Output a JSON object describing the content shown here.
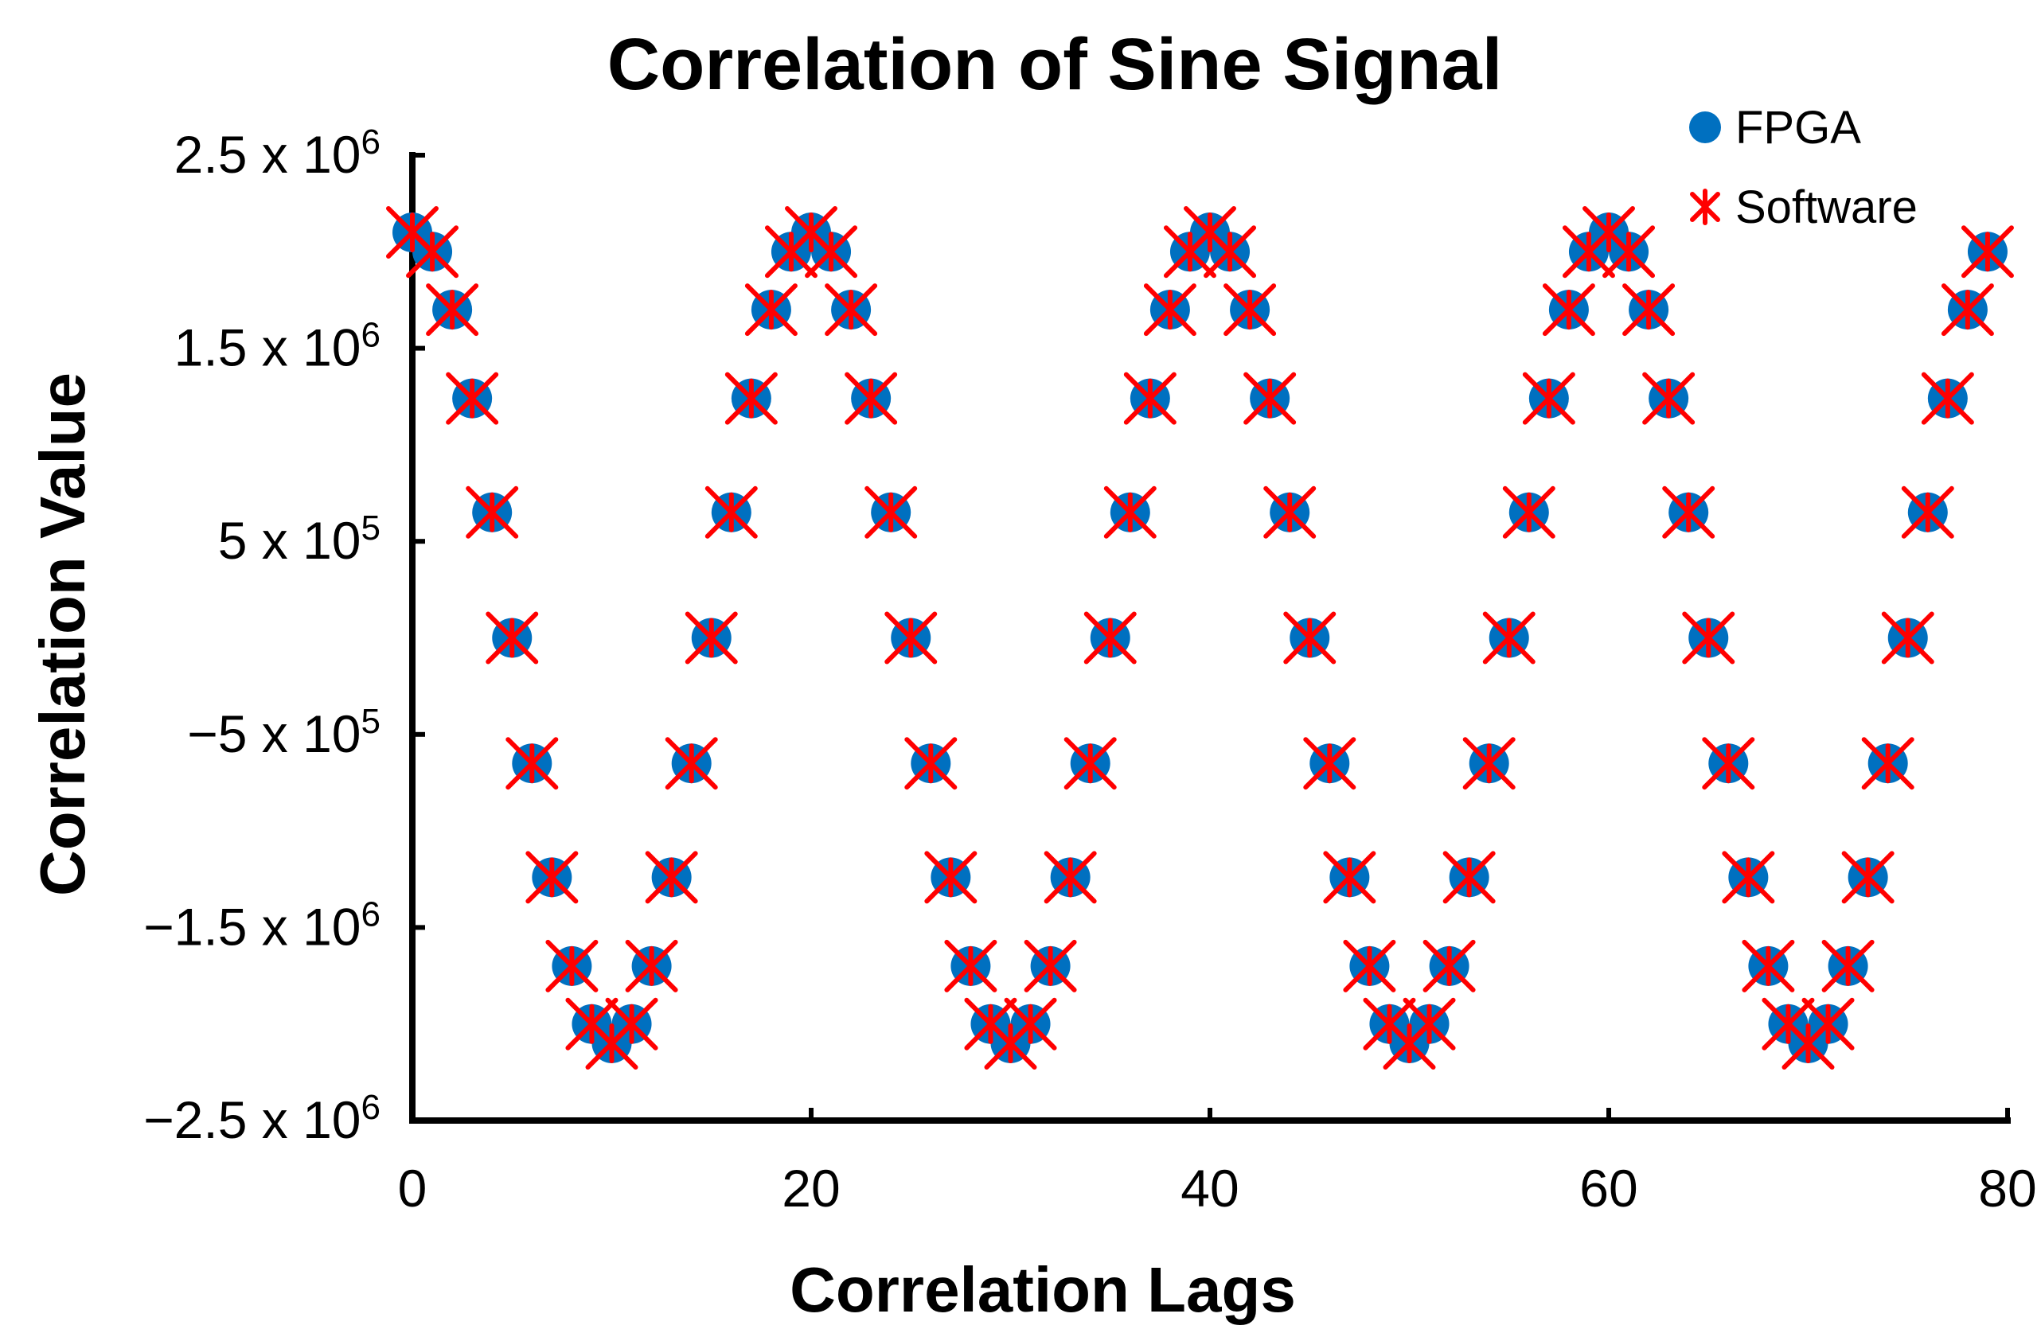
{
  "chart_data": {
    "type": "scatter",
    "title": "Correlation of Sine Signal",
    "xlabel": "Correlation Lags",
    "ylabel": "Correlation Value",
    "xlim": [
      0,
      80
    ],
    "ylim": [
      -2500000,
      2500000
    ],
    "grid": false,
    "legend_position": "top-right",
    "x_ticks": [
      {
        "value": 0,
        "label": "0"
      },
      {
        "value": 20,
        "label": "20"
      },
      {
        "value": 40,
        "label": "40"
      },
      {
        "value": 60,
        "label": "60"
      },
      {
        "value": 80,
        "label": "80"
      }
    ],
    "y_ticks": [
      {
        "value": 2500000,
        "mantissa": "2.5 x 10",
        "exponent": "6"
      },
      {
        "value": 1500000,
        "mantissa": "1.5 x 10",
        "exponent": "6"
      },
      {
        "value": 500000,
        "mantissa": "5 x 10",
        "exponent": "5"
      },
      {
        "value": -500000,
        "mantissa": "−5 x 10",
        "exponent": "5"
      },
      {
        "value": -1500000,
        "mantissa": "−1.5 x 10",
        "exponent": "6"
      },
      {
        "value": -2500000,
        "mantissa": "−2.5 x 10",
        "exponent": "6"
      }
    ],
    "x": [
      0,
      1,
      2,
      3,
      4,
      5,
      6,
      7,
      8,
      9,
      10,
      11,
      12,
      13,
      14,
      15,
      16,
      17,
      18,
      19,
      20,
      21,
      22,
      23,
      24,
      25,
      26,
      27,
      28,
      29,
      30,
      31,
      32,
      33,
      34,
      35,
      36,
      37,
      38,
      39,
      40,
      41,
      42,
      43,
      44,
      45,
      46,
      47,
      48,
      49,
      50,
      51,
      52,
      53,
      54,
      55,
      56,
      57,
      58,
      59,
      60,
      61,
      62,
      63,
      64,
      65,
      66,
      67,
      68,
      69,
      70,
      71,
      72,
      73,
      74,
      75,
      76,
      77,
      78,
      79
    ],
    "series": [
      {
        "name": "FPGA",
        "marker": "circle",
        "color": "#0070C0",
        "values": [
          2100000,
          2000000,
          1700000,
          1240000,
          650000,
          0,
          -650000,
          -1240000,
          -1700000,
          -2000000,
          -2100000,
          -2000000,
          -1700000,
          -1240000,
          -650000,
          0,
          650000,
          1240000,
          1700000,
          2000000,
          2100000,
          2000000,
          1700000,
          1240000,
          650000,
          0,
          -650000,
          -1240000,
          -1700000,
          -2000000,
          -2100000,
          -2000000,
          -1700000,
          -1240000,
          -650000,
          0,
          650000,
          1240000,
          1700000,
          2000000,
          2100000,
          2000000,
          1700000,
          1240000,
          650000,
          0,
          -650000,
          -1240000,
          -1700000,
          -2000000,
          -2100000,
          -2000000,
          -1700000,
          -1240000,
          -650000,
          0,
          650000,
          1240000,
          1700000,
          2000000,
          2100000,
          2000000,
          1700000,
          1240000,
          650000,
          0,
          -650000,
          -1240000,
          -1700000,
          -2000000,
          -2100000,
          -2000000,
          -1700000,
          -1240000,
          -650000,
          0,
          650000,
          1240000,
          1700000,
          2000000
        ]
      },
      {
        "name": "Software",
        "marker": "star",
        "color": "#FF0000",
        "values": [
          2100000,
          2000000,
          1700000,
          1240000,
          650000,
          0,
          -650000,
          -1240000,
          -1700000,
          -2000000,
          -2100000,
          -2000000,
          -1700000,
          -1240000,
          -650000,
          0,
          650000,
          1240000,
          1700000,
          2000000,
          2100000,
          2000000,
          1700000,
          1240000,
          650000,
          0,
          -650000,
          -1240000,
          -1700000,
          -2000000,
          -2100000,
          -2000000,
          -1700000,
          -1240000,
          -650000,
          0,
          650000,
          1240000,
          1700000,
          2000000,
          2100000,
          2000000,
          1700000,
          1240000,
          650000,
          0,
          -650000,
          -1240000,
          -1700000,
          -2000000,
          -2100000,
          -2000000,
          -1700000,
          -1240000,
          -650000,
          0,
          650000,
          1240000,
          1700000,
          2000000,
          2100000,
          2000000,
          1700000,
          1240000,
          650000,
          0,
          -650000,
          -1240000,
          -1700000,
          -2000000,
          -2100000,
          -2000000,
          -1700000,
          -1240000,
          -650000,
          0,
          650000,
          1240000,
          1700000,
          2000000
        ]
      }
    ]
  }
}
